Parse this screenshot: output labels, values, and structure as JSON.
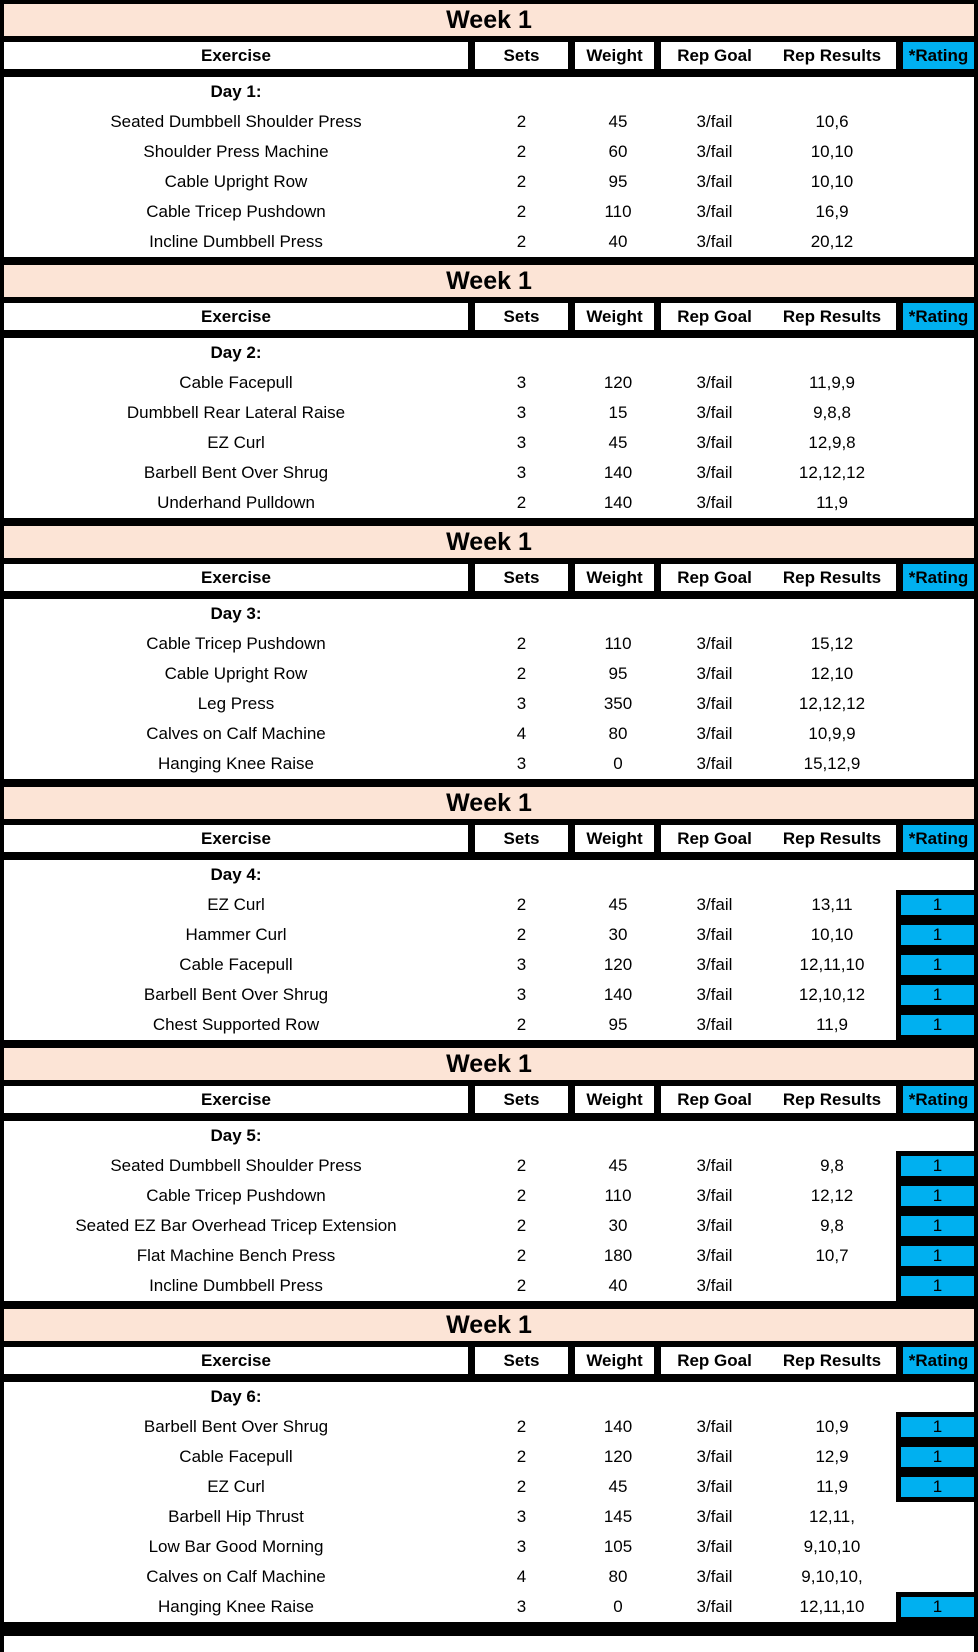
{
  "sheet": {
    "columns": [
      "Exercise",
      "Sets",
      "Weight",
      "Rep Goal",
      "Rep Results",
      "*Rating"
    ],
    "colors": {
      "week_band_bg": "#FCE4D6",
      "rating_bg": "#00B0F0",
      "grid": "#000000",
      "text": "#000000"
    },
    "sections": [
      {
        "week_label": "Week 1",
        "day_label": "Day 1:",
        "rows": [
          {
            "exercise": "Seated Dumbbell Shoulder Press",
            "sets": "2",
            "weight": "45",
            "rep_goal": "3/fail",
            "rep_results": "10,6",
            "rating": ""
          },
          {
            "exercise": "Shoulder Press Machine",
            "sets": "2",
            "weight": "60",
            "rep_goal": "3/fail",
            "rep_results": "10,10",
            "rating": ""
          },
          {
            "exercise": "Cable Upright Row",
            "sets": "2",
            "weight": "95",
            "rep_goal": "3/fail",
            "rep_results": "10,10",
            "rating": ""
          },
          {
            "exercise": "Cable Tricep Pushdown",
            "sets": "2",
            "weight": "110",
            "rep_goal": "3/fail",
            "rep_results": "16,9",
            "rating": ""
          },
          {
            "exercise": "Incline Dumbbell Press",
            "sets": "2",
            "weight": "40",
            "rep_goal": "3/fail",
            "rep_results": "20,12",
            "rating": ""
          }
        ]
      },
      {
        "week_label": "Week 1",
        "day_label": "Day 2:",
        "rows": [
          {
            "exercise": "Cable Facepull",
            "sets": "3",
            "weight": "120",
            "rep_goal": "3/fail",
            "rep_results": "11,9,9",
            "rating": ""
          },
          {
            "exercise": "Dumbbell Rear Lateral Raise",
            "sets": "3",
            "weight": "15",
            "rep_goal": "3/fail",
            "rep_results": "9,8,8",
            "rating": ""
          },
          {
            "exercise": "EZ Curl",
            "sets": "3",
            "weight": "45",
            "rep_goal": "3/fail",
            "rep_results": "12,9,8",
            "rating": ""
          },
          {
            "exercise": "Barbell Bent Over Shrug",
            "sets": "3",
            "weight": "140",
            "rep_goal": "3/fail",
            "rep_results": "12,12,12",
            "rating": ""
          },
          {
            "exercise": "Underhand Pulldown",
            "sets": "2",
            "weight": "140",
            "rep_goal": "3/fail",
            "rep_results": "11,9",
            "rating": ""
          }
        ]
      },
      {
        "week_label": "Week 1",
        "day_label": "Day 3:",
        "rows": [
          {
            "exercise": "Cable Tricep Pushdown",
            "sets": "2",
            "weight": "110",
            "rep_goal": "3/fail",
            "rep_results": "15,12",
            "rating": ""
          },
          {
            "exercise": "Cable Upright Row",
            "sets": "2",
            "weight": "95",
            "rep_goal": "3/fail",
            "rep_results": "12,10",
            "rating": ""
          },
          {
            "exercise": "Leg Press",
            "sets": "3",
            "weight": "350",
            "rep_goal": "3/fail",
            "rep_results": "12,12,12",
            "rating": ""
          },
          {
            "exercise": "Calves on Calf Machine",
            "sets": "4",
            "weight": "80",
            "rep_goal": "3/fail",
            "rep_results": "10,9,9",
            "rating": ""
          },
          {
            "exercise": "Hanging Knee Raise",
            "sets": "3",
            "weight": "0",
            "rep_goal": "3/fail",
            "rep_results": "15,12,9",
            "rating": ""
          }
        ]
      },
      {
        "week_label": "Week 1",
        "day_label": "Day 4:",
        "rows": [
          {
            "exercise": "EZ Curl",
            "sets": "2",
            "weight": "45",
            "rep_goal": "3/fail",
            "rep_results": "13,11",
            "rating": "1"
          },
          {
            "exercise": "Hammer Curl",
            "sets": "2",
            "weight": "30",
            "rep_goal": "3/fail",
            "rep_results": "10,10",
            "rating": "1"
          },
          {
            "exercise": "Cable Facepull",
            "sets": "3",
            "weight": "120",
            "rep_goal": "3/fail",
            "rep_results": "12,11,10",
            "rating": "1"
          },
          {
            "exercise": "Barbell Bent Over Shrug",
            "sets": "3",
            "weight": "140",
            "rep_goal": "3/fail",
            "rep_results": "12,10,12",
            "rating": "1"
          },
          {
            "exercise": "Chest Supported Row",
            "sets": "2",
            "weight": "95",
            "rep_goal": "3/fail",
            "rep_results": "11,9",
            "rating": "1"
          }
        ]
      },
      {
        "week_label": "Week 1",
        "day_label": "Day 5:",
        "rows": [
          {
            "exercise": "Seated Dumbbell Shoulder Press",
            "sets": "2",
            "weight": "45",
            "rep_goal": "3/fail",
            "rep_results": "9,8",
            "rating": "1"
          },
          {
            "exercise": "Cable Tricep Pushdown",
            "sets": "2",
            "weight": "110",
            "rep_goal": "3/fail",
            "rep_results": "12,12",
            "rating": "1"
          },
          {
            "exercise": "Seated EZ Bar Overhead Tricep Extension",
            "sets": "2",
            "weight": "30",
            "rep_goal": "3/fail",
            "rep_results": "9,8",
            "rating": "1"
          },
          {
            "exercise": "Flat Machine Bench Press",
            "sets": "2",
            "weight": "180",
            "rep_goal": "3/fail",
            "rep_results": "10,7",
            "rating": "1"
          },
          {
            "exercise": "Incline Dumbbell Press",
            "sets": "2",
            "weight": "40",
            "rep_goal": "3/fail",
            "rep_results": "",
            "rating": "1"
          }
        ]
      },
      {
        "week_label": "Week 1",
        "day_label": "Day 6:",
        "rows": [
          {
            "exercise": "Barbell Bent Over Shrug",
            "sets": "2",
            "weight": "140",
            "rep_goal": "3/fail",
            "rep_results": "10,9",
            "rating": "1"
          },
          {
            "exercise": "Cable Facepull",
            "sets": "2",
            "weight": "120",
            "rep_goal": "3/fail",
            "rep_results": "12,9",
            "rating": "1"
          },
          {
            "exercise": "EZ Curl",
            "sets": "2",
            "weight": "45",
            "rep_goal": "3/fail",
            "rep_results": "11,9",
            "rating": "1"
          },
          {
            "exercise": "Barbell Hip Thrust",
            "sets": "3",
            "weight": "145",
            "rep_goal": "3/fail",
            "rep_results": "12,11,",
            "rating": ""
          },
          {
            "exercise": "Low Bar Good Morning",
            "sets": "3",
            "weight": "105",
            "rep_goal": "3/fail",
            "rep_results": "9,10,10",
            "rating": ""
          },
          {
            "exercise": "Calves on Calf Machine",
            "sets": "4",
            "weight": "80",
            "rep_goal": "3/fail",
            "rep_results": "9,10,10,",
            "rating": ""
          },
          {
            "exercise": "Hanging Knee Raise",
            "sets": "3",
            "weight": "0",
            "rep_goal": "3/fail",
            "rep_results": "12,11,10",
            "rating": "1"
          }
        ]
      }
    ]
  }
}
